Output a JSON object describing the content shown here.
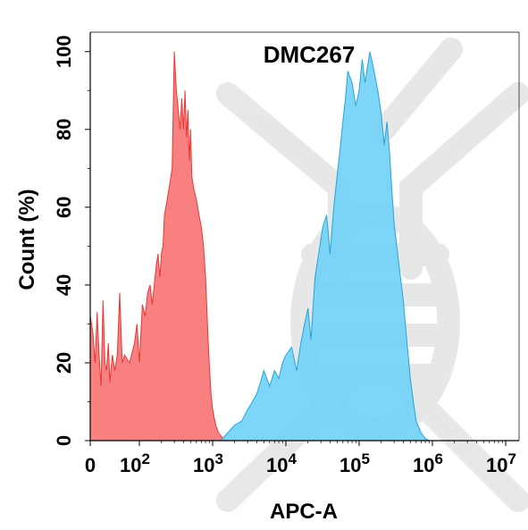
{
  "chart_data": {
    "type": "area",
    "title": "DMC267",
    "xlabel": "APC-A",
    "ylabel": "Count  (%)",
    "x_scale": "biexponential (linear near 0, log above 10^2)",
    "xlim": [
      0,
      10000000
    ],
    "ylim": [
      0,
      105
    ],
    "x_ticks": [
      {
        "base": "0",
        "exp": ""
      },
      {
        "base": "10",
        "exp": "2"
      },
      {
        "base": "10",
        "exp": "3"
      },
      {
        "base": "10",
        "exp": "4"
      },
      {
        "base": "10",
        "exp": "5"
      },
      {
        "base": "10",
        "exp": "6"
      },
      {
        "base": "10",
        "exp": "7"
      }
    ],
    "y_ticks": [
      "0",
      "20",
      "40",
      "60",
      "80",
      "100"
    ],
    "grid": false,
    "legend": "none",
    "series": [
      {
        "color": "#f87272",
        "stroke": "#e53935",
        "points": [
          [
            0,
            32
          ],
          [
            5,
            28
          ],
          [
            10,
            20
          ],
          [
            14,
            33
          ],
          [
            18,
            22
          ],
          [
            22,
            14
          ],
          [
            26,
            36
          ],
          [
            30,
            20
          ],
          [
            33,
            18
          ],
          [
            37,
            25
          ],
          [
            40,
            15
          ],
          [
            45,
            22
          ],
          [
            50,
            18
          ],
          [
            55,
            22
          ],
          [
            60,
            38
          ],
          [
            65,
            20
          ],
          [
            70,
            22
          ],
          [
            80,
            20
          ],
          [
            90,
            25
          ],
          [
            95,
            30
          ],
          [
            100,
            20
          ],
          [
            110,
            35
          ],
          [
            120,
            32
          ],
          [
            130,
            38
          ],
          [
            140,
            40
          ],
          [
            150,
            35
          ],
          [
            170,
            45
          ],
          [
            180,
            48
          ],
          [
            190,
            42
          ],
          [
            200,
            48
          ],
          [
            210,
            50
          ],
          [
            220,
            58
          ],
          [
            240,
            62
          ],
          [
            260,
            66
          ],
          [
            280,
            70
          ],
          [
            300,
            100
          ],
          [
            320,
            90
          ],
          [
            340,
            85
          ],
          [
            360,
            80
          ],
          [
            380,
            88
          ],
          [
            400,
            80
          ],
          [
            420,
            90
          ],
          [
            440,
            78
          ],
          [
            460,
            85
          ],
          [
            480,
            72
          ],
          [
            500,
            80
          ],
          [
            520,
            68
          ],
          [
            550,
            65
          ],
          [
            600,
            62
          ],
          [
            650,
            58
          ],
          [
            700,
            55
          ],
          [
            750,
            50
          ],
          [
            800,
            42
          ],
          [
            850,
            30
          ],
          [
            900,
            20
          ],
          [
            950,
            12
          ],
          [
            1000,
            8
          ],
          [
            1100,
            4
          ],
          [
            1200,
            2
          ],
          [
            1400,
            0.5
          ],
          [
            1600,
            0
          ]
        ]
      },
      {
        "color": "#6fd0f6",
        "stroke": "#29a3d6",
        "points": [
          [
            1300,
            0
          ],
          [
            1600,
            2
          ],
          [
            2000,
            4
          ],
          [
            2500,
            5
          ],
          [
            3000,
            8
          ],
          [
            3500,
            10
          ],
          [
            4000,
            12
          ],
          [
            4500,
            15
          ],
          [
            5000,
            18
          ],
          [
            6000,
            14
          ],
          [
            7000,
            18
          ],
          [
            8000,
            16
          ],
          [
            9000,
            20
          ],
          [
            10000,
            22
          ],
          [
            12000,
            24
          ],
          [
            14000,
            18
          ],
          [
            16000,
            25
          ],
          [
            18000,
            30
          ],
          [
            20000,
            34
          ],
          [
            22000,
            26
          ],
          [
            25000,
            42
          ],
          [
            28000,
            48
          ],
          [
            32000,
            55
          ],
          [
            36000,
            58
          ],
          [
            40000,
            48
          ],
          [
            45000,
            60
          ],
          [
            50000,
            68
          ],
          [
            55000,
            75
          ],
          [
            60000,
            82
          ],
          [
            65000,
            88
          ],
          [
            70000,
            95
          ],
          [
            80000,
            92
          ],
          [
            90000,
            86
          ],
          [
            100000,
            90
          ],
          [
            110000,
            98
          ],
          [
            120000,
            92
          ],
          [
            140000,
            100
          ],
          [
            160000,
            95
          ],
          [
            180000,
            90
          ],
          [
            200000,
            84
          ],
          [
            220000,
            76
          ],
          [
            240000,
            82
          ],
          [
            260000,
            74
          ],
          [
            280000,
            64
          ],
          [
            300000,
            56
          ],
          [
            350000,
            45
          ],
          [
            400000,
            36
          ],
          [
            450000,
            25
          ],
          [
            500000,
            16
          ],
          [
            550000,
            10
          ],
          [
            600000,
            5
          ],
          [
            700000,
            2
          ],
          [
            800000,
            0.5
          ],
          [
            900000,
            0
          ]
        ]
      }
    ]
  }
}
